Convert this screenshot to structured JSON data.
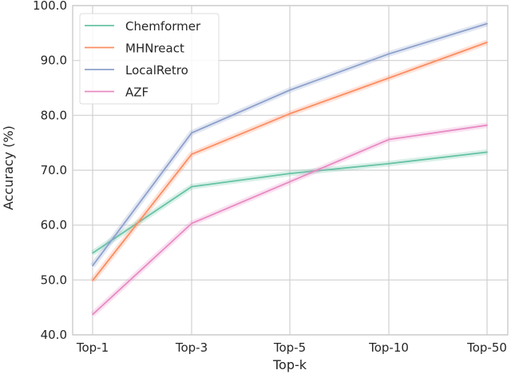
{
  "chart_data": {
    "type": "line",
    "xlabel": "Top-k",
    "ylabel": "Accuracy (%)",
    "categories": [
      "Top-1",
      "Top-3",
      "Top-5",
      "Top-10",
      "Top-50"
    ],
    "ylim": [
      40,
      100
    ],
    "yticks": [
      "40.0",
      "50.0",
      "60.0",
      "70.0",
      "80.0",
      "90.0",
      "100.0"
    ],
    "grid": true,
    "legend_position": "top-left",
    "series": [
      {
        "name": "Chemformer",
        "color": "#66c2a5",
        "values": [
          54.9,
          67.0,
          69.4,
          71.2,
          73.3
        ]
      },
      {
        "name": "MHNreact",
        "color": "#fc8d62",
        "values": [
          49.9,
          72.9,
          80.3,
          86.8,
          93.3
        ]
      },
      {
        "name": "LocalRetro",
        "color": "#8da0cb",
        "values": [
          52.6,
          76.8,
          84.6,
          91.2,
          96.7
        ]
      },
      {
        "name": "AZF",
        "color": "#e78ac3",
        "values": [
          43.7,
          60.3,
          67.9,
          75.6,
          78.2
        ]
      }
    ]
  }
}
